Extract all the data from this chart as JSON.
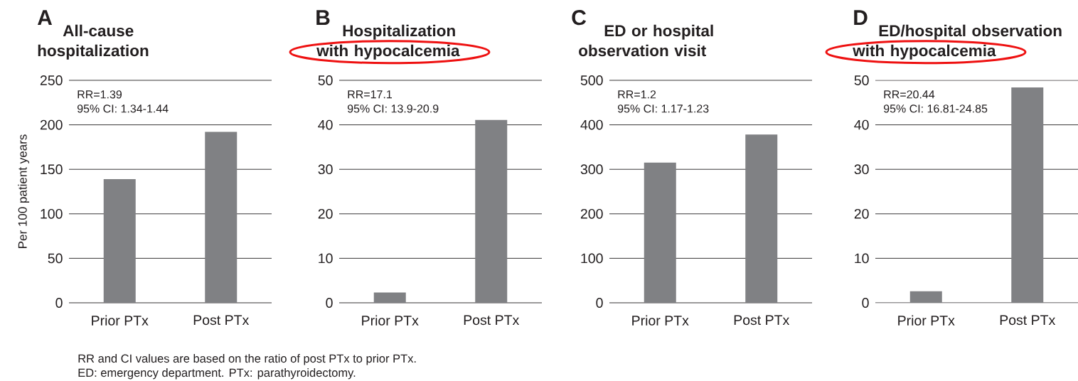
{
  "chart_data": [
    {
      "type": "bar",
      "title": "A",
      "subtitle": "All-cause hospitalization",
      "ylabel": "Per 100 patient years",
      "categories": [
        "Prior PTx",
        "Post PTx"
      ],
      "values": [
        139,
        192
      ],
      "color": "#808184",
      "ylim": [
        0,
        250
      ],
      "yticks": [
        0,
        50,
        100,
        150,
        200,
        250
      ],
      "grid": "y",
      "annotations": [
        "RR=1.39",
        "95% CI: 1.34-1.44"
      ]
    },
    {
      "type": "bar",
      "title": "B",
      "subtitle": "Hospitalization with hypocalcemia",
      "categories": [
        "Prior PTx",
        "Post PTx"
      ],
      "values": [
        2.3,
        41.1
      ],
      "color": "#808184",
      "ylim": [
        0,
        50
      ],
      "yticks": [
        0,
        10,
        20,
        30,
        40,
        50
      ],
      "grid": "y",
      "annotations": [
        "RR=17.1",
        "95% CI: 13.9-20.9"
      ]
    },
    {
      "type": "bar",
      "title": "C",
      "subtitle": "ED or hospital observation visit",
      "categories": [
        "Prior PTx",
        "Post PTx"
      ],
      "values": [
        315,
        378
      ],
      "color": "#808184",
      "ylim": [
        0,
        500
      ],
      "yticks": [
        0,
        100,
        200,
        300,
        400,
        500
      ],
      "grid": "y",
      "annotations": [
        "RR=1.2",
        "95% CI: 1.17-1.23"
      ]
    },
    {
      "type": "bar",
      "title": "D",
      "subtitle": "ED/hospital observation with hypocalcemia",
      "categories": [
        "Prior PTx",
        "Post PTx"
      ],
      "values": [
        2.6,
        48.4
      ],
      "color": "#808184",
      "ylim": [
        0,
        50
      ],
      "yticks": [
        0,
        10,
        20,
        30,
        40,
        50
      ],
      "grid": "y",
      "annotations": [
        "RR=20.44",
        "95% CI: 16.81-24.85"
      ]
    },
    {
      "type": "other",
      "annotations": [
        "RR and CI values are based on the ratio of post PTx to prior PTx.",
        "ED: emergency department. PTx: parathyroidectomy."
      ]
    }
  ]
}
